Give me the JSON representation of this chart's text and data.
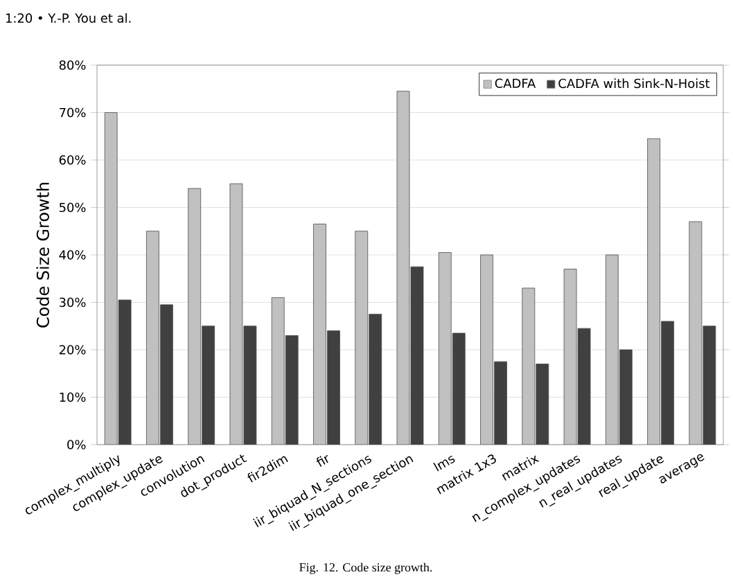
{
  "chart_data": {
    "type": "bar",
    "categories": [
      "complex_multiply",
      "complex_update",
      "convolution",
      "dot_product",
      "fir2dim",
      "fir",
      "iir_biquad_N_sections",
      "iir_biquad_one_section",
      "lms",
      "matrix 1x3",
      "matrix",
      "n_complex_updates",
      "n_real_updates",
      "real_update",
      "average"
    ],
    "series": [
      {
        "name": "CADFA",
        "color": "#c0c0c0",
        "values": [
          70,
          45,
          54,
          55,
          31,
          46.5,
          45,
          74.5,
          40.5,
          40,
          33,
          37,
          40,
          64.5,
          47
        ]
      },
      {
        "name": "CADFA with Sink-N-Hoist",
        "color": "#404040",
        "values": [
          30.5,
          29.5,
          25,
          25,
          23,
          24,
          27.5,
          37.5,
          23.5,
          17.5,
          17,
          24.5,
          20,
          26,
          25
        ]
      }
    ],
    "ylabel": "Code Size Growth",
    "ylim": [
      0,
      80
    ],
    "yticks": [
      {
        "value": 0,
        "label": "0%"
      },
      {
        "value": 10,
        "label": "10%"
      },
      {
        "value": 20,
        "label": "20%"
      },
      {
        "value": 30,
        "label": "30%"
      },
      {
        "value": 40,
        "label": "40%"
      },
      {
        "value": 50,
        "label": "50%"
      },
      {
        "value": 60,
        "label": "60%"
      },
      {
        "value": 70,
        "label": "70%"
      },
      {
        "value": 80,
        "label": "80%"
      }
    ],
    "grid": "y",
    "legend": "top right",
    "annotations": [
      "1:20 • Y.-P. You et al.",
      "Fig. 12. Code size growth."
    ]
  }
}
